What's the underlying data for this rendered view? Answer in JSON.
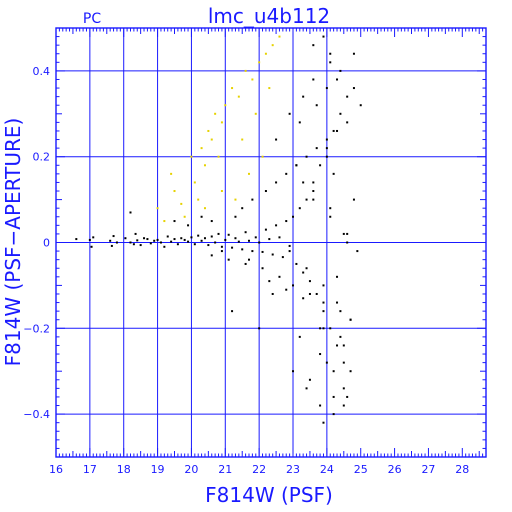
{
  "chart_data": {
    "type": "scatter",
    "title": "lmc_u4b112",
    "corner_label": "PC",
    "xlabel": "F814W (PSF)",
    "ylabel": "F814W (PSF−APERTURE)",
    "xlim": [
      16,
      28.7
    ],
    "ylim": [
      -0.5,
      0.5
    ],
    "xticks": [
      16,
      17,
      18,
      19,
      20,
      21,
      22,
      23,
      24,
      25,
      26,
      27,
      28
    ],
    "xticklabels": [
      "16",
      "17",
      "18",
      "19",
      "20",
      "21",
      "22",
      "23",
      "24",
      "25",
      "26",
      "27",
      "28"
    ],
    "yticks": [
      0.4,
      0.2,
      0,
      -0.2,
      -0.4
    ],
    "yticklabels": [
      "0.4",
      "0.2",
      "0",
      "−0.2",
      "−0.4"
    ],
    "grid": true,
    "colors": {
      "axis": "#1a1aff",
      "main_points": "#000000",
      "rejected_points": "#e6d200"
    },
    "series": [
      {
        "color": "#000000",
        "x": [
          16.6,
          17.0,
          17.05,
          17.1,
          17.6,
          17.65,
          17.7,
          17.8,
          18.05,
          18.2,
          18.3,
          18.35,
          18.4,
          18.5,
          18.6,
          18.7,
          18.8,
          18.9,
          19.0,
          19.1,
          19.2,
          19.3,
          19.4,
          19.5,
          19.6,
          19.7,
          19.8,
          19.9,
          20.0,
          20.1,
          20.2,
          20.3,
          20.4,
          20.5,
          20.6,
          20.7,
          20.8,
          20.9,
          21.0,
          21.1,
          21.2,
          21.3,
          21.4,
          21.5,
          21.6,
          21.7,
          21.8,
          21.9,
          22.0,
          22.1,
          22.2,
          22.3,
          22.4,
          22.5,
          22.6,
          22.7,
          22.8,
          22.9,
          23.0,
          23.1,
          23.2,
          23.3,
          23.4,
          23.5,
          23.6,
          23.7,
          23.8,
          23.9,
          24.0,
          24.1,
          24.2,
          24.3,
          24.4,
          24.5,
          24.6,
          24.7,
          24.8,
          25.0,
          18.2,
          19.5,
          19.9,
          20.3,
          20.6,
          21.3,
          21.5,
          21.8,
          22.2,
          22.5,
          22.8,
          23.1,
          23.4,
          23.7,
          24.0,
          24.3,
          24.6,
          21.7,
          22.1,
          22.6,
          23.0,
          23.5,
          23.9,
          24.4,
          24.7,
          21.2,
          22.0,
          22.4,
          23.2,
          23.8,
          24.2,
          24.5,
          22.9,
          23.3,
          23.6,
          24.1,
          24.8,
          23.0,
          23.4,
          23.8,
          24.2,
          24.6,
          23.6,
          23.9,
          24.1,
          24.4,
          23.2,
          23.7,
          24.0,
          24.3,
          23.9,
          24.2,
          24.5,
          23.5,
          24.0,
          22.5,
          23.1,
          23.6,
          24.1,
          24.5,
          22.9,
          23.4,
          23.9,
          24.3,
          24.7,
          21.1,
          21.6,
          20.9,
          20.6,
          22.3,
          22.8,
          23.3,
          24.5,
          24.8,
          24.9,
          24.6,
          24.3,
          23.8,
          24.0,
          24.2,
          24.4,
          23.3,
          23.6,
          23.9,
          24.1,
          24.6
        ],
        "y": [
          0.008,
          0.006,
          -0.01,
          0.012,
          0.004,
          -0.008,
          0.015,
          0.0,
          0.01,
          0.0,
          -0.004,
          0.02,
          0.005,
          -0.006,
          0.01,
          0.008,
          -0.002,
          0.004,
          0.006,
          0.0,
          -0.01,
          0.014,
          0.002,
          0.008,
          -0.004,
          0.01,
          0.006,
          0.002,
          0.012,
          -0.004,
          0.016,
          0.004,
          0.01,
          -0.006,
          0.014,
          0.0,
          0.02,
          -0.01,
          0.006,
          0.018,
          -0.012,
          0.01,
          0.002,
          -0.016,
          0.024,
          0.004,
          -0.02,
          0.012,
          0.0,
          -0.022,
          0.03,
          0.008,
          -0.028,
          0.04,
          0.012,
          -0.034,
          0.05,
          -0.008,
          0.06,
          -0.05,
          0.08,
          -0.07,
          0.1,
          -0.09,
          0.14,
          -0.12,
          0.18,
          -0.16,
          0.22,
          -0.2,
          0.26,
          -0.24,
          0.3,
          -0.28,
          0.34,
          -0.3,
          0.36,
          0.32,
          0.07,
          0.05,
          0.04,
          0.06,
          0.05,
          0.06,
          0.08,
          0.1,
          0.12,
          0.14,
          0.16,
          0.18,
          0.2,
          0.22,
          0.24,
          0.26,
          0.28,
          -0.04,
          -0.06,
          -0.08,
          -0.1,
          -0.12,
          -0.14,
          -0.16,
          -0.18,
          -0.16,
          -0.2,
          -0.12,
          -0.22,
          -0.26,
          -0.3,
          -0.34,
          0.3,
          0.34,
          0.38,
          0.42,
          0.44,
          -0.3,
          -0.34,
          -0.38,
          -0.4,
          -0.36,
          0.46,
          0.48,
          0.44,
          0.4,
          0.28,
          0.32,
          0.36,
          0.38,
          -0.42,
          -0.36,
          -0.38,
          -0.32,
          -0.28,
          0.24,
          0.18,
          0.12,
          0.08,
          0.02,
          -0.02,
          -0.06,
          -0.1,
          -0.14,
          -0.18,
          -0.04,
          -0.05,
          -0.02,
          -0.03,
          -0.09,
          -0.11,
          -0.13,
          -0.24,
          0.1,
          -0.02,
          0.02,
          -0.08,
          -0.2,
          0.2,
          0.16,
          -0.22,
          0.14,
          0.1,
          -0.2,
          0.06,
          0.0
        ]
      },
      {
        "color": "#e6d200",
        "x": [
          19.0,
          19.2,
          19.4,
          19.5,
          19.7,
          19.8,
          20.0,
          20.1,
          20.2,
          20.3,
          20.4,
          20.5,
          20.6,
          20.7,
          20.8,
          20.9,
          21.0,
          21.2,
          21.4,
          21.6,
          21.8,
          22.0,
          22.2,
          22.4,
          22.6,
          21.5,
          21.9,
          22.3,
          20.4,
          20.9,
          21.3,
          21.7,
          22.1
        ],
        "y": [
          0.08,
          0.05,
          0.16,
          0.12,
          0.09,
          0.06,
          0.2,
          0.14,
          0.1,
          0.22,
          0.18,
          0.26,
          0.24,
          0.3,
          0.2,
          0.28,
          0.32,
          0.36,
          0.34,
          0.4,
          0.38,
          0.42,
          0.44,
          0.46,
          0.48,
          0.24,
          0.3,
          0.36,
          0.08,
          0.12,
          0.1,
          0.16,
          0.2
        ]
      }
    ]
  }
}
